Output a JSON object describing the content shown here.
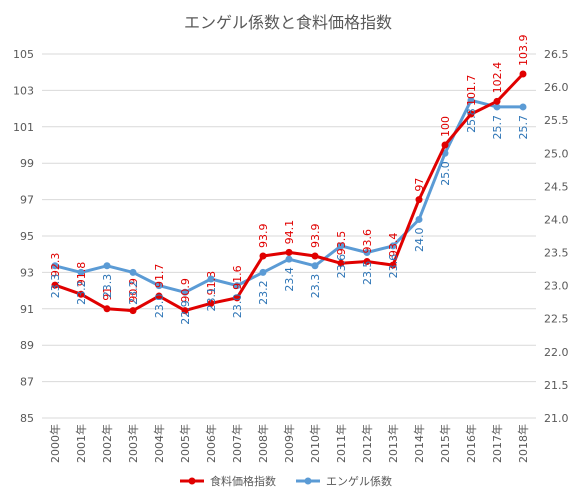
{
  "chart_data": {
    "type": "line",
    "title": "エンゲル係数と食料価格指数",
    "categories": [
      "2000年",
      "2001年",
      "2002年",
      "2003年",
      "2004年",
      "2005年",
      "2006年",
      "2007年",
      "2008年",
      "2009年",
      "2010年",
      "2011年",
      "2012年",
      "2013年",
      "2014年",
      "2015年",
      "2016年",
      "2017年",
      "2018年"
    ],
    "y_left": {
      "min": 85,
      "max": 105,
      "step": 2,
      "ticks": [
        "85",
        "87",
        "89",
        "91",
        "93",
        "95",
        "97",
        "99",
        "101",
        "103",
        "105"
      ]
    },
    "y_right": {
      "min": 21.0,
      "max": 26.5,
      "step": 0.5,
      "ticks": [
        "21.0",
        "21.5",
        "22.0",
        "22.5",
        "23.0",
        "23.5",
        "24.0",
        "24.5",
        "25.0",
        "25.5",
        "26.0",
        "26.5"
      ]
    },
    "series": [
      {
        "name": "食料価格指数",
        "axis": "left",
        "color": "#e00000",
        "values": [
          92.3,
          91.8,
          91.0,
          90.9,
          91.7,
          90.9,
          91.3,
          91.6,
          93.9,
          94.1,
          93.9,
          93.5,
          93.6,
          93.4,
          97.0,
          100.0,
          101.7,
          102.4,
          103.9
        ],
        "labels": [
          "92.3",
          "91.8",
          "91",
          "90.9",
          "91.7",
          "90.9",
          "91.3",
          "91.6",
          "93.9",
          "94.1",
          "93.9",
          "93.5",
          "93.6",
          "93.4",
          "97",
          "100",
          "101.7",
          "102.4",
          "103.9"
        ]
      },
      {
        "name": "エンゲル係数",
        "axis": "right",
        "color": "#5b9bd5",
        "label_color": "#2e75b6",
        "values": [
          23.3,
          23.2,
          23.3,
          23.2,
          23.0,
          22.9,
          23.1,
          23.0,
          23.2,
          23.4,
          23.3,
          23.6,
          23.5,
          23.6,
          24.0,
          25.0,
          25.8,
          25.7,
          25.7
        ],
        "labels": [
          "23.3",
          "23.2",
          "23.3",
          "23.2",
          "23.0",
          "22.9",
          "23.1",
          "23.0",
          "23.2",
          "23.4",
          "23.3",
          "23.6",
          "23.5",
          "23.6",
          "24.0",
          "25.0",
          "25.8",
          "25.7",
          "25.7"
        ]
      }
    ],
    "legend": {
      "position": "bottom"
    }
  }
}
